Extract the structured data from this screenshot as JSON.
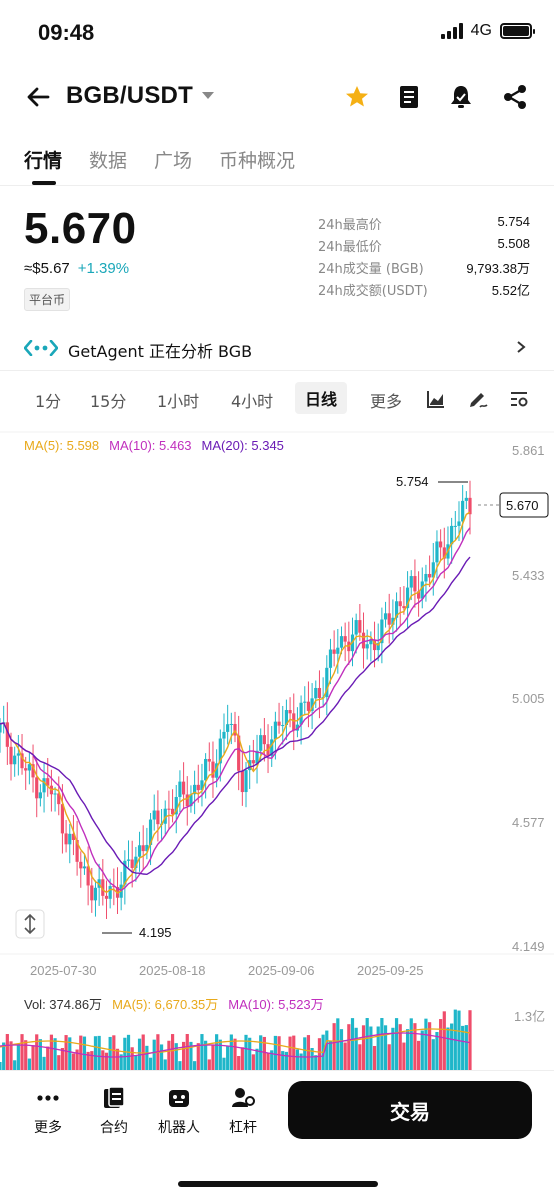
{
  "status": {
    "time": "09:48",
    "network": "4G"
  },
  "header": {
    "pair": "BGB/USDT"
  },
  "tabs": [
    {
      "label": "行情"
    },
    {
      "label": "数据"
    },
    {
      "label": "广场"
    },
    {
      "label": "币种概况"
    }
  ],
  "price": {
    "last": "5.670",
    "approx": "≈$5.67",
    "change": "+1.39%",
    "tag": "平台币"
  },
  "stats": [
    {
      "label": "24h最高价",
      "value": "5.754"
    },
    {
      "label": "24h最低价",
      "value": "5.508"
    },
    {
      "label": "24h成交量 (BGB)",
      "value": "9,793.38万"
    },
    {
      "label": "24h成交额(USDT)",
      "value": "5.52亿"
    }
  ],
  "agent": {
    "text": "GetAgent 正在分析 BGB"
  },
  "intervals": [
    "1分",
    "15分",
    "1小时",
    "4小时",
    "日线",
    "更多"
  ],
  "ma": {
    "ma5": "MA(5): 5.598",
    "ma10": "MA(10): 5.463",
    "ma20": "MA(20): 5.345"
  },
  "chart_data": {
    "type": "candlestick",
    "y_axis_ticks": [
      "5.861",
      "5.433",
      "5.005",
      "4.577",
      "4.149"
    ],
    "x_axis_ticks": [
      "2025-07-30",
      "2025-08-18",
      "2025-09-06",
      "2025-09-25"
    ],
    "high_marker": "5.754",
    "low_marker": "4.195",
    "current_price_label": "5.670",
    "colors": {
      "up": "#1fb6c9",
      "down": "#ef4d6b",
      "ma5": "#e8a91b",
      "ma10": "#c02fbd",
      "ma20": "#6a1bb5"
    }
  },
  "volume": {
    "vol": "Vol: 374.86万",
    "ma5": "MA(5): 6,670.35万",
    "ma10": "MA(10): 5,523万",
    "axis": "1.3亿"
  },
  "bottom_nav": [
    {
      "label": "更多"
    },
    {
      "label": "合约"
    },
    {
      "label": "机器人"
    },
    {
      "label": "杠杆"
    }
  ],
  "trade_label": "交易"
}
